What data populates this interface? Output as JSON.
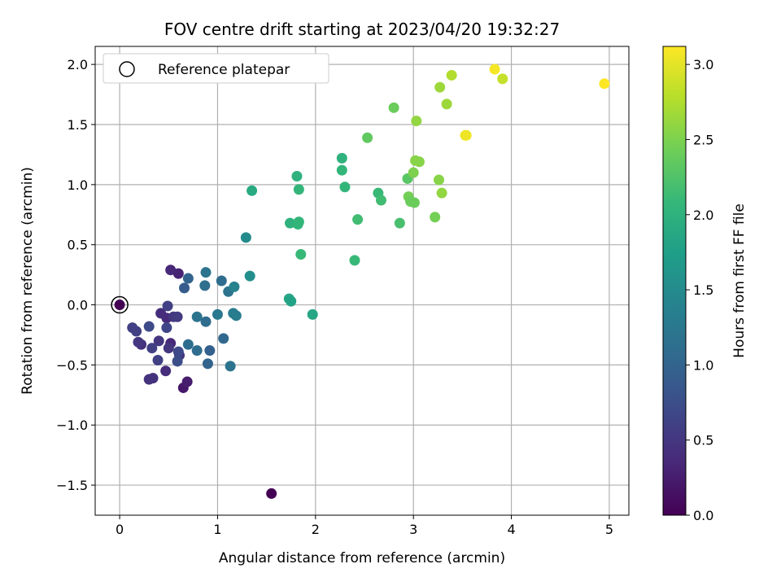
{
  "chart_data": {
    "type": "scatter",
    "title": "FOV centre drift starting at 2023/04/20 19:32:27",
    "xlabel": "Angular distance from reference (arcmin)",
    "ylabel": "Rotation from reference (arcmin)",
    "xlim": [
      -0.25,
      5.2
    ],
    "ylim": [
      -1.75,
      2.15
    ],
    "xticks": [
      0,
      1,
      2,
      3,
      4,
      5
    ],
    "yticks": [
      -1.5,
      -1.0,
      -0.5,
      0.0,
      0.5,
      1.0,
      1.5,
      2.0
    ],
    "xtick_labels": [
      "0",
      "1",
      "2",
      "3",
      "4",
      "5"
    ],
    "ytick_labels": [
      "−1.5",
      "−1.0",
      "−0.5",
      "0.0",
      "0.5",
      "1.0",
      "1.5",
      "2.0"
    ],
    "grid": true,
    "legend": {
      "location": "upper-left",
      "label": "Reference platepar"
    },
    "reference_point": {
      "x": 0.0,
      "y": 0.0
    },
    "colorbar": {
      "label": "Hours from first FF file",
      "colormap": "viridis",
      "range": [
        0.0,
        3.12
      ],
      "ticks": [
        0.0,
        0.5,
        1.0,
        1.5,
        2.0,
        2.5,
        3.0
      ],
      "tick_labels": [
        "0.0",
        "0.5",
        "1.0",
        "1.5",
        "2.0",
        "2.5",
        "3.0"
      ]
    },
    "points": [
      {
        "x": 0.0,
        "y": 0.0,
        "hours": 0.0
      },
      {
        "x": 1.55,
        "y": -1.57,
        "hours": 0.0
      },
      {
        "x": 0.65,
        "y": -0.69,
        "hours": 0.2
      },
      {
        "x": 0.69,
        "y": -0.64,
        "hours": 0.25
      },
      {
        "x": 0.6,
        "y": 0.26,
        "hours": 0.3
      },
      {
        "x": 0.52,
        "y": 0.29,
        "hours": 0.35
      },
      {
        "x": 0.52,
        "y": -0.32,
        "hours": 0.35
      },
      {
        "x": 0.48,
        "y": -0.11,
        "hours": 0.38
      },
      {
        "x": 0.42,
        "y": -0.07,
        "hours": 0.4
      },
      {
        "x": 0.47,
        "y": -0.55,
        "hours": 0.4
      },
      {
        "x": 0.3,
        "y": -0.62,
        "hours": 0.45
      },
      {
        "x": 0.34,
        "y": -0.61,
        "hours": 0.45
      },
      {
        "x": 0.22,
        "y": -0.33,
        "hours": 0.45
      },
      {
        "x": 0.19,
        "y": -0.31,
        "hours": 0.5
      },
      {
        "x": 0.4,
        "y": -0.3,
        "hours": 0.5
      },
      {
        "x": 0.61,
        "y": -0.42,
        "hours": 0.5
      },
      {
        "x": 0.5,
        "y": -0.36,
        "hours": 0.5
      },
      {
        "x": 0.55,
        "y": -0.1,
        "hours": 0.5
      },
      {
        "x": 0.59,
        "y": -0.1,
        "hours": 0.55
      },
      {
        "x": 0.49,
        "y": -0.01,
        "hours": 0.6
      },
      {
        "x": 0.13,
        "y": -0.19,
        "hours": 0.6
      },
      {
        "x": 0.17,
        "y": -0.22,
        "hours": 0.6
      },
      {
        "x": 0.33,
        "y": -0.36,
        "hours": 0.6
      },
      {
        "x": 0.39,
        "y": -0.46,
        "hours": 0.6
      },
      {
        "x": 0.48,
        "y": -0.19,
        "hours": 0.65
      },
      {
        "x": 0.6,
        "y": -0.39,
        "hours": 0.7
      },
      {
        "x": 0.3,
        "y": -0.18,
        "hours": 0.7
      },
      {
        "x": 0.59,
        "y": -0.47,
        "hours": 0.75
      },
      {
        "x": 0.66,
        "y": 0.14,
        "hours": 0.9
      },
      {
        "x": 0.7,
        "y": 0.22,
        "hours": 1.0
      },
      {
        "x": 0.7,
        "y": -0.33,
        "hours": 1.1
      },
      {
        "x": 0.79,
        "y": -0.38,
        "hours": 1.1
      },
      {
        "x": 0.79,
        "y": -0.1,
        "hours": 1.2
      },
      {
        "x": 0.88,
        "y": -0.14,
        "hours": 1.1
      },
      {
        "x": 0.9,
        "y": -0.49,
        "hours": 1.0
      },
      {
        "x": 0.92,
        "y": -0.38,
        "hours": 0.95
      },
      {
        "x": 0.87,
        "y": 0.16,
        "hours": 1.15
      },
      {
        "x": 0.88,
        "y": 0.27,
        "hours": 1.2
      },
      {
        "x": 1.0,
        "y": -0.08,
        "hours": 1.25
      },
      {
        "x": 1.04,
        "y": 0.2,
        "hours": 1.1
      },
      {
        "x": 1.06,
        "y": -0.28,
        "hours": 1.05
      },
      {
        "x": 1.11,
        "y": 0.11,
        "hours": 1.2
      },
      {
        "x": 1.13,
        "y": -0.51,
        "hours": 1.2
      },
      {
        "x": 1.16,
        "y": -0.07,
        "hours": 1.3
      },
      {
        "x": 1.17,
        "y": 0.15,
        "hours": 1.4
      },
      {
        "x": 1.19,
        "y": -0.09,
        "hours": 1.3
      },
      {
        "x": 1.29,
        "y": 0.56,
        "hours": 1.5
      },
      {
        "x": 1.33,
        "y": 0.24,
        "hours": 1.55
      },
      {
        "x": 1.35,
        "y": 0.95,
        "hours": 1.9
      },
      {
        "x": 1.73,
        "y": 0.05,
        "hours": 1.85
      },
      {
        "x": 1.75,
        "y": 0.03,
        "hours": 1.8
      },
      {
        "x": 1.74,
        "y": 0.68,
        "hours": 2.0
      },
      {
        "x": 1.81,
        "y": 1.07,
        "hours": 2.0
      },
      {
        "x": 1.82,
        "y": 0.67,
        "hours": 2.05
      },
      {
        "x": 1.83,
        "y": 0.69,
        "hours": 2.05
      },
      {
        "x": 1.83,
        "y": 0.96,
        "hours": 2.05
      },
      {
        "x": 1.85,
        "y": 0.42,
        "hours": 2.1
      },
      {
        "x": 1.97,
        "y": -0.08,
        "hours": 1.85
      },
      {
        "x": 2.27,
        "y": 1.22,
        "hours": 2.0
      },
      {
        "x": 2.27,
        "y": 1.12,
        "hours": 2.05
      },
      {
        "x": 2.3,
        "y": 0.98,
        "hours": 2.05
      },
      {
        "x": 2.4,
        "y": 0.37,
        "hours": 2.1
      },
      {
        "x": 2.43,
        "y": 0.71,
        "hours": 2.15
      },
      {
        "x": 2.53,
        "y": 1.39,
        "hours": 2.35
      },
      {
        "x": 2.64,
        "y": 0.93,
        "hours": 2.1
      },
      {
        "x": 2.67,
        "y": 0.87,
        "hours": 2.15
      },
      {
        "x": 2.8,
        "y": 1.64,
        "hours": 2.4
      },
      {
        "x": 2.86,
        "y": 0.68,
        "hours": 2.2
      },
      {
        "x": 2.94,
        "y": 1.05,
        "hours": 2.3
      },
      {
        "x": 2.95,
        "y": 0.9,
        "hours": 2.45
      },
      {
        "x": 2.97,
        "y": 0.86,
        "hours": 2.4
      },
      {
        "x": 3.0,
        "y": 1.1,
        "hours": 2.5
      },
      {
        "x": 3.01,
        "y": 0.85,
        "hours": 2.4
      },
      {
        "x": 3.02,
        "y": 1.2,
        "hours": 2.55
      },
      {
        "x": 3.03,
        "y": 1.53,
        "hours": 2.6
      },
      {
        "x": 3.06,
        "y": 1.19,
        "hours": 2.55
      },
      {
        "x": 3.22,
        "y": 0.73,
        "hours": 2.45
      },
      {
        "x": 3.26,
        "y": 1.04,
        "hours": 2.55
      },
      {
        "x": 3.27,
        "y": 1.81,
        "hours": 2.65
      },
      {
        "x": 3.29,
        "y": 0.93,
        "hours": 2.6
      },
      {
        "x": 3.34,
        "y": 1.67,
        "hours": 2.65
      },
      {
        "x": 3.39,
        "y": 1.91,
        "hours": 2.75
      },
      {
        "x": 3.53,
        "y": 1.41,
        "hours": 3.05
      },
      {
        "x": 3.54,
        "y": 1.41,
        "hours": 3.05
      },
      {
        "x": 3.83,
        "y": 1.96,
        "hours": 3.08
      },
      {
        "x": 3.91,
        "y": 1.88,
        "hours": 2.85
      },
      {
        "x": 4.95,
        "y": 1.84,
        "hours": 3.12
      }
    ]
  }
}
